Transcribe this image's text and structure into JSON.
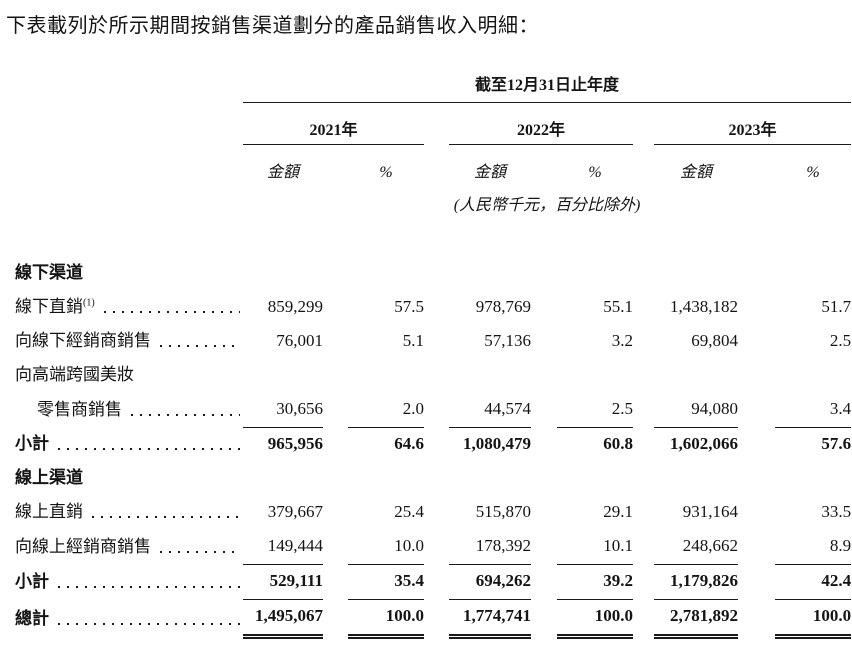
{
  "intro": "下表載列於所示期間按銷售渠道劃分的產品銷售收入明細：",
  "table": {
    "span_header": "截至12月31日止年度",
    "unit_note": "(人民幣千元，百分比除外)",
    "year_groups": [
      {
        "year": "2021年",
        "amount_label": "金額",
        "pct_label": "%"
      },
      {
        "year": "2022年",
        "amount_label": "金額",
        "pct_label": "%"
      },
      {
        "year": "2023年",
        "amount_label": "金額",
        "pct_label": "%"
      }
    ],
    "rows": [
      {
        "kind": "section",
        "label": "線下渠道"
      },
      {
        "kind": "item",
        "label": "線下直銷",
        "note_ref": "(1)",
        "leader": true,
        "values": [
          "859,299",
          "57.5",
          "978,769",
          "55.1",
          "1,438,182",
          "51.7"
        ]
      },
      {
        "kind": "item",
        "label": "向線下經銷商銷售",
        "leader": true,
        "values": [
          "76,001",
          "5.1",
          "57,136",
          "3.2",
          "69,804",
          "2.5"
        ]
      },
      {
        "kind": "continuation",
        "label": "向高端跨國美妝"
      },
      {
        "kind": "item",
        "label": "零售商銷售",
        "indent": true,
        "leader": true,
        "underline": "single",
        "values": [
          "30,656",
          "2.0",
          "44,574",
          "2.5",
          "94,080",
          "3.4"
        ]
      },
      {
        "kind": "subtotal",
        "label": "小計",
        "leader": true,
        "values": [
          "965,956",
          "64.6",
          "1,080,479",
          "60.8",
          "1,602,066",
          "57.6"
        ]
      },
      {
        "kind": "section",
        "label": "線上渠道"
      },
      {
        "kind": "item",
        "label": "線上直銷",
        "leader": true,
        "values": [
          "379,667",
          "25.4",
          "515,870",
          "29.1",
          "931,164",
          "33.5"
        ]
      },
      {
        "kind": "item",
        "label": "向線上經銷商銷售",
        "leader": true,
        "underline": "single",
        "values": [
          "149,444",
          "10.0",
          "178,392",
          "10.1",
          "248,662",
          "8.9"
        ]
      },
      {
        "kind": "subtotal",
        "label": "小計",
        "leader": true,
        "underline": "single",
        "values": [
          "529,111",
          "35.4",
          "694,262",
          "39.2",
          "1,179,826",
          "42.4"
        ]
      },
      {
        "kind": "total",
        "label": "總計",
        "leader": true,
        "underline": "double",
        "values": [
          "1,495,067",
          "100.0",
          "1,774,741",
          "100.0",
          "2,781,892",
          "100.0"
        ]
      }
    ]
  }
}
